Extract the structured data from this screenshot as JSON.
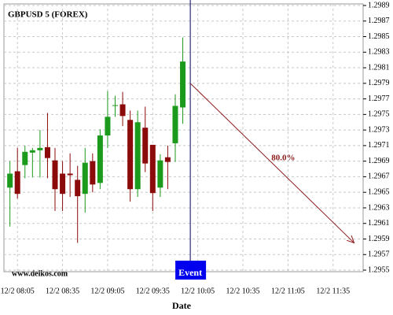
{
  "chart_data": {
    "type": "candlestick",
    "title": "GBPUSD 5 (FOREX)",
    "xlabel": "Date",
    "watermark": "www.delkos.com",
    "x": [
      480,
      485,
      490,
      495,
      500,
      505,
      510,
      515,
      520,
      525,
      530,
      535,
      540,
      545,
      550,
      555,
      560,
      565,
      570,
      575,
      580,
      585,
      590,
      595
    ],
    "open": [
      1.29656,
      1.29677,
      1.29685,
      1.29701,
      1.29704,
      1.29708,
      1.29691,
      1.29674,
      1.29674,
      1.29666,
      1.29648,
      1.2969,
      1.29662,
      1.29723,
      1.29762,
      1.29763,
      1.29743,
      1.29654,
      1.29733,
      1.29711,
      1.29656,
      1.29695,
      1.29713,
      1.29759
    ],
    "high": [
      1.2969,
      1.29707,
      1.2971,
      1.29707,
      1.2973,
      1.29752,
      1.29707,
      1.2969,
      1.297,
      1.29684,
      1.29707,
      1.297,
      1.29731,
      1.2978,
      1.29774,
      1.29779,
      1.29755,
      1.29755,
      1.2976,
      1.29711,
      1.29699,
      1.2971,
      1.29776,
      1.29849
    ],
    "low": [
      1.29606,
      1.29642,
      1.29668,
      1.29669,
      1.29669,
      1.29668,
      1.29626,
      1.29626,
      1.29644,
      1.29585,
      1.29624,
      1.2965,
      1.29654,
      1.29707,
      1.29747,
      1.29735,
      1.29638,
      1.29644,
      1.29676,
      1.29626,
      1.29644,
      1.29654,
      1.29689,
      1.29738
    ],
    "close": [
      1.29674,
      1.29648,
      1.29702,
      1.29704,
      1.29707,
      1.29694,
      1.29654,
      1.29648,
      1.29672,
      1.29645,
      1.29688,
      1.2966,
      1.29723,
      1.29747,
      1.29762,
      1.29748,
      1.29654,
      1.2974,
      1.29687,
      1.29649,
      1.29691,
      1.29689,
      1.29761,
      1.29818
    ],
    "up_color": "#1c9a1c",
    "down_color": "#8b0a0a",
    "event": {
      "x": 600,
      "label": "Event",
      "color": "#0000ee"
    },
    "projection": {
      "x": [
        600,
        709
      ],
      "y": [
        1.2979,
        1.29585
      ],
      "label": "80.0%",
      "color": "#8b1a1a"
    },
    "xlim": [
      476,
      715
    ],
    "ylim": [
      1.29548,
      1.29892
    ],
    "xticks": [
      {
        "value": 485,
        "label": "12/2 08:05"
      },
      {
        "value": 515,
        "label": "12/2 08:35"
      },
      {
        "value": 545,
        "label": "12/2 09:05"
      },
      {
        "value": 575,
        "label": "12/2 09:35"
      },
      {
        "value": 605,
        "label": "12/2 10:05"
      },
      {
        "value": 635,
        "label": "12/2 10:35"
      },
      {
        "value": 665,
        "label": "12/2 11:05"
      },
      {
        "value": 695,
        "label": "12/2 11:35"
      }
    ],
    "yticks": [
      1.2955,
      1.2957,
      1.2959,
      1.2961,
      1.2963,
      1.2965,
      1.2967,
      1.2969,
      1.2971,
      1.2973,
      1.2975,
      1.2977,
      1.2979,
      1.2981,
      1.2983,
      1.2985,
      1.2987,
      1.2989
    ],
    "grid": true
  }
}
